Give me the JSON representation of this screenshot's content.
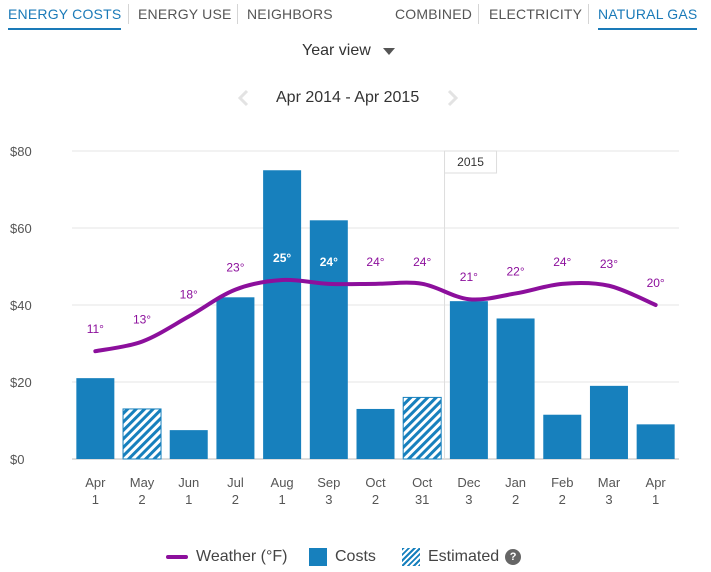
{
  "tabs_left": [
    {
      "label": "ENERGY COSTS",
      "active": true
    },
    {
      "label": "ENERGY USE",
      "active": false
    },
    {
      "label": "NEIGHBORS",
      "active": false
    }
  ],
  "tabs_right": [
    {
      "label": "COMBINED",
      "active": false
    },
    {
      "label": "ELECTRICITY",
      "active": false
    },
    {
      "label": "NATURAL GAS",
      "active": true
    }
  ],
  "view_select": {
    "value": "Year view"
  },
  "range": {
    "label": "Apr 2014 - Apr 2015"
  },
  "colors": {
    "accent": "#1a7ab8",
    "bar": "#1780bd",
    "weather": "#8c0f9c"
  },
  "legend": {
    "weather": "Weather (°F)",
    "costs": "Costs",
    "estimated": "Estimated",
    "help": "?"
  },
  "chart_data": {
    "type": "bar",
    "categories": [
      [
        "Apr",
        "1"
      ],
      [
        "May",
        "2"
      ],
      [
        "Jun",
        "1"
      ],
      [
        "Jul",
        "2"
      ],
      [
        "Aug",
        "1"
      ],
      [
        "Sep",
        "3"
      ],
      [
        "Oct",
        "2"
      ],
      [
        "Oct",
        "31"
      ],
      [
        "Dec",
        "3"
      ],
      [
        "Jan",
        "2"
      ],
      [
        "Feb",
        "2"
      ],
      [
        "Mar",
        "3"
      ],
      [
        "Apr",
        "1"
      ]
    ],
    "costs": [
      21,
      13,
      7.5,
      42,
      75,
      62,
      13,
      16,
      41,
      36.5,
      11.5,
      19,
      9
    ],
    "estimated": [
      false,
      true,
      false,
      false,
      false,
      false,
      false,
      true,
      false,
      false,
      false,
      false,
      false
    ],
    "weather": [
      11,
      13,
      18,
      23,
      25,
      24,
      24,
      24,
      21,
      22,
      24,
      23,
      20
    ],
    "weather_labels": [
      "11°",
      "13°",
      "18°",
      "23°",
      "25°",
      "24°",
      "24°",
      "24°",
      "21°",
      "22°",
      "24°",
      "23°",
      "20°"
    ],
    "weather_curve": [
      28,
      30.5,
      37,
      44,
      46.5,
      45.5,
      45.5,
      45.5,
      41.5,
      43,
      45.5,
      45,
      40
    ],
    "y_ticks": [
      "$0",
      "$20",
      "$40",
      "$60",
      "$80"
    ],
    "ylim": [
      0,
      80
    ],
    "year_marker": {
      "label": "2015",
      "before_index": 8
    },
    "grid": true
  }
}
